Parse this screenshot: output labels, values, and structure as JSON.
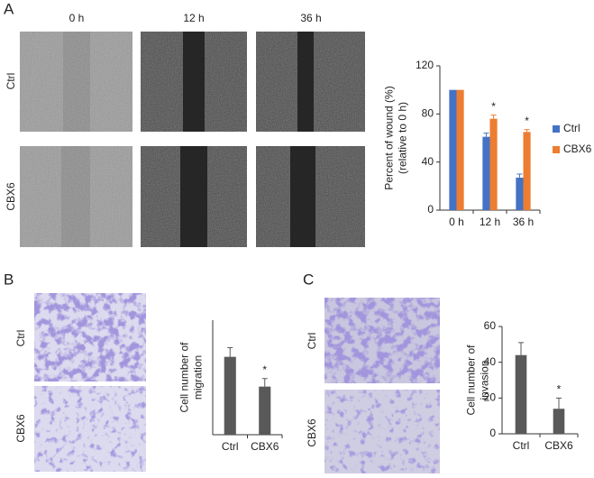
{
  "figure": {
    "panels": [
      {
        "label": "A",
        "columns": [
          "0 h",
          "12 h",
          "36 h"
        ],
        "rows": [
          "Ctrl",
          "CBX6"
        ]
      },
      {
        "label": "B",
        "rows": [
          "Ctrl",
          "CBX6"
        ]
      },
      {
        "label": "C",
        "rows": [
          "Ctrl",
          "CBX6"
        ]
      }
    ]
  },
  "chart_data": [
    {
      "type": "bar",
      "y_label": [
        "Percent of wound (%)",
        "(relative to 0 h)"
      ],
      "categories": [
        "0 h",
        "12 h",
        "36 h"
      ],
      "series": [
        {
          "name": "Ctrl",
          "color": "#4472c4",
          "values": [
            100,
            61,
            27
          ],
          "errors": [
            0,
            3,
            3
          ]
        },
        {
          "name": "CBX6",
          "color": "#ed7d31",
          "values": [
            100,
            76,
            65
          ],
          "errors": [
            0,
            3,
            2
          ]
        }
      ],
      "annotations": [
        {
          "text": "*",
          "series": 1,
          "index": 1
        },
        {
          "text": "*",
          "series": 1,
          "index": 2
        }
      ],
      "ylim": [
        0,
        120
      ],
      "yticks": [
        0,
        40,
        80,
        120
      ],
      "legend": "right"
    },
    {
      "type": "bar",
      "y_label": [
        "Cell number of",
        "migration"
      ],
      "categories": [
        "Ctrl",
        "CBX6"
      ],
      "color": "#595959",
      "values": [
        68,
        42
      ],
      "errors": [
        8,
        7
      ],
      "annotations": [
        {
          "text": "*",
          "index": 1
        }
      ],
      "ylim": [
        0,
        100
      ]
    },
    {
      "type": "bar",
      "y_label": [
        "Cell number of",
        "invasion"
      ],
      "categories": [
        "Ctrl",
        "CBX6"
      ],
      "color": "#595959",
      "values": [
        44,
        14
      ],
      "errors": [
        7,
        6
      ],
      "annotations": [
        {
          "text": "*",
          "index": 1
        }
      ],
      "ylim": [
        0,
        60
      ],
      "yticks": [
        0,
        20,
        40,
        60
      ]
    }
  ]
}
